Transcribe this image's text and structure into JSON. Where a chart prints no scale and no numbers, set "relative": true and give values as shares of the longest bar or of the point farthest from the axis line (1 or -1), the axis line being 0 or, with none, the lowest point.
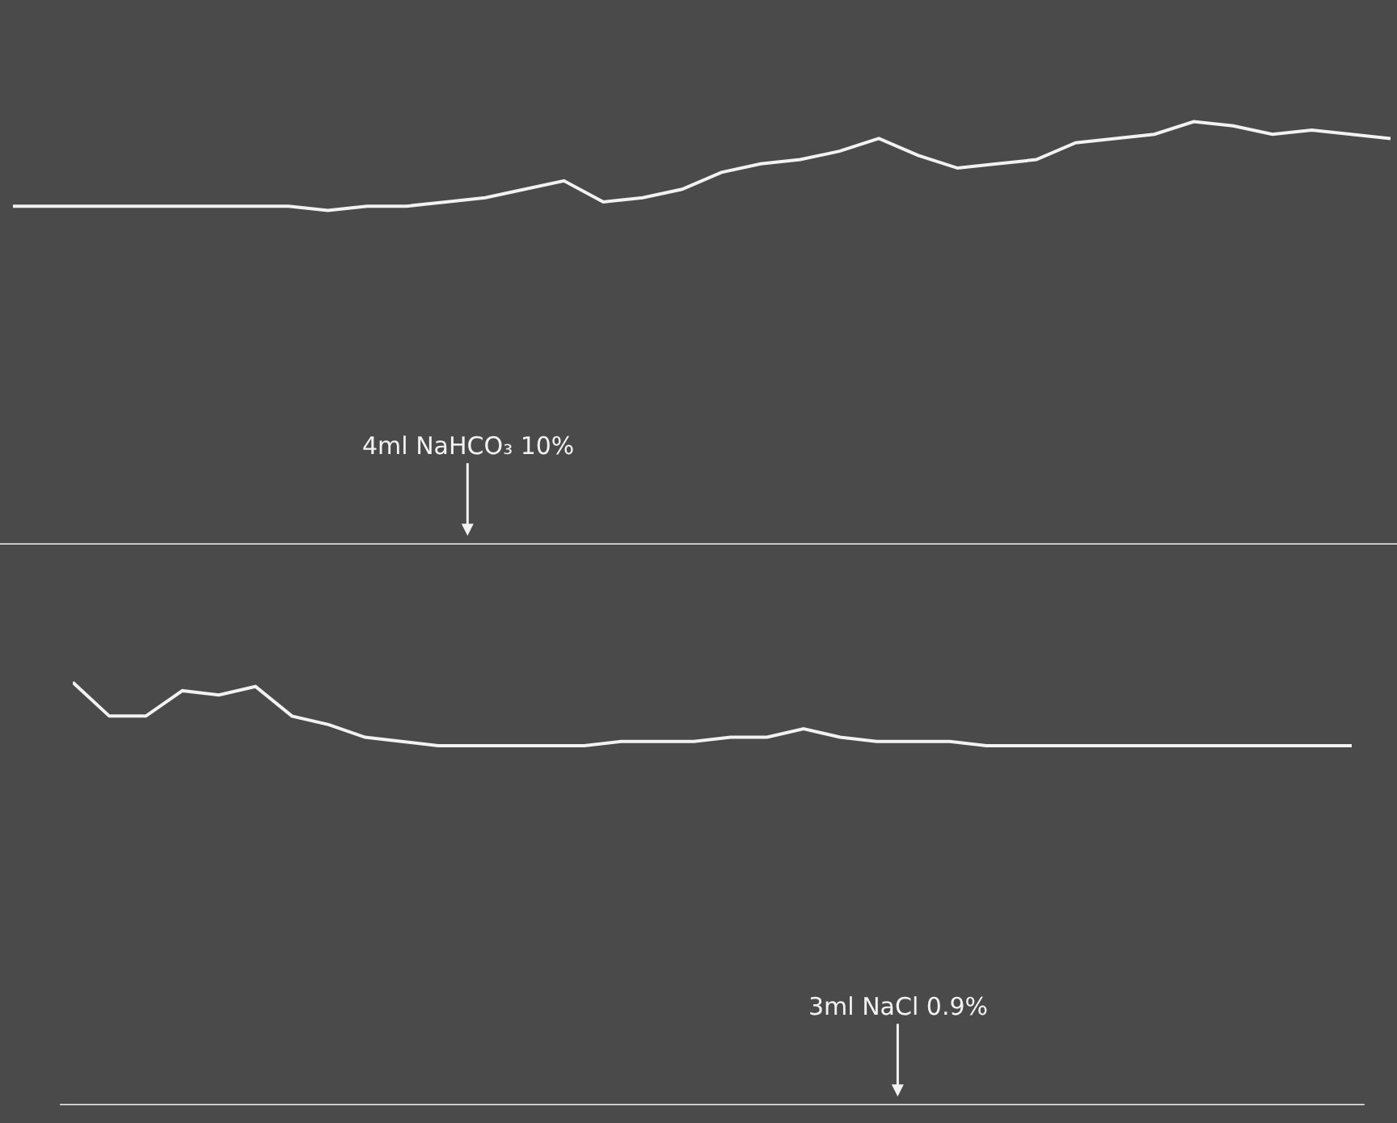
{
  "chart_data": [
    {
      "type": "line",
      "relative": true,
      "color": "#f2f2f2",
      "annotations": [
        "4ml NaHCO₃ 10%"
      ],
      "categories": [
        null,
        null,
        null,
        null,
        null,
        null,
        null,
        null,
        null,
        null,
        null,
        null,
        null,
        null,
        null,
        null,
        null,
        null,
        null,
        null,
        null,
        null,
        null,
        null,
        null,
        null,
        null,
        null,
        null,
        null,
        null,
        null,
        null,
        null,
        null,
        null
      ],
      "values": [
        0.8,
        0.8,
        0.8,
        0.8,
        0.8,
        0.8,
        0.8,
        0.8,
        0.79,
        0.8,
        0.8,
        0.81,
        0.82,
        0.84,
        0.86,
        0.81,
        0.82,
        0.84,
        0.88,
        0.9,
        0.91,
        0.93,
        0.96,
        0.92,
        0.89,
        0.9,
        0.91,
        0.95,
        0.96,
        0.97,
        1.0,
        0.99,
        0.97,
        0.98,
        0.97,
        0.96
      ]
    },
    {
      "type": "line",
      "relative": true,
      "color": "#f2f2f2",
      "annotations": [
        "3ml NaCl 0.9%"
      ],
      "categories": [
        null,
        null,
        null,
        null,
        null,
        null,
        null,
        null,
        null,
        null,
        null,
        null,
        null,
        null,
        null,
        null,
        null,
        null,
        null,
        null,
        null,
        null,
        null,
        null,
        null,
        null,
        null,
        null,
        null,
        null,
        null,
        null,
        null,
        null,
        null,
        null
      ],
      "values": [
        1.0,
        0.92,
        0.92,
        0.98,
        0.97,
        0.99,
        0.92,
        0.9,
        0.87,
        0.86,
        0.85,
        0.85,
        0.85,
        0.85,
        0.85,
        0.86,
        0.86,
        0.86,
        0.87,
        0.87,
        0.89,
        0.87,
        0.86,
        0.86,
        0.86,
        0.85,
        0.85,
        0.85,
        0.85,
        0.85,
        0.85,
        0.85,
        0.85,
        0.85,
        0.85,
        0.85
      ]
    }
  ]
}
